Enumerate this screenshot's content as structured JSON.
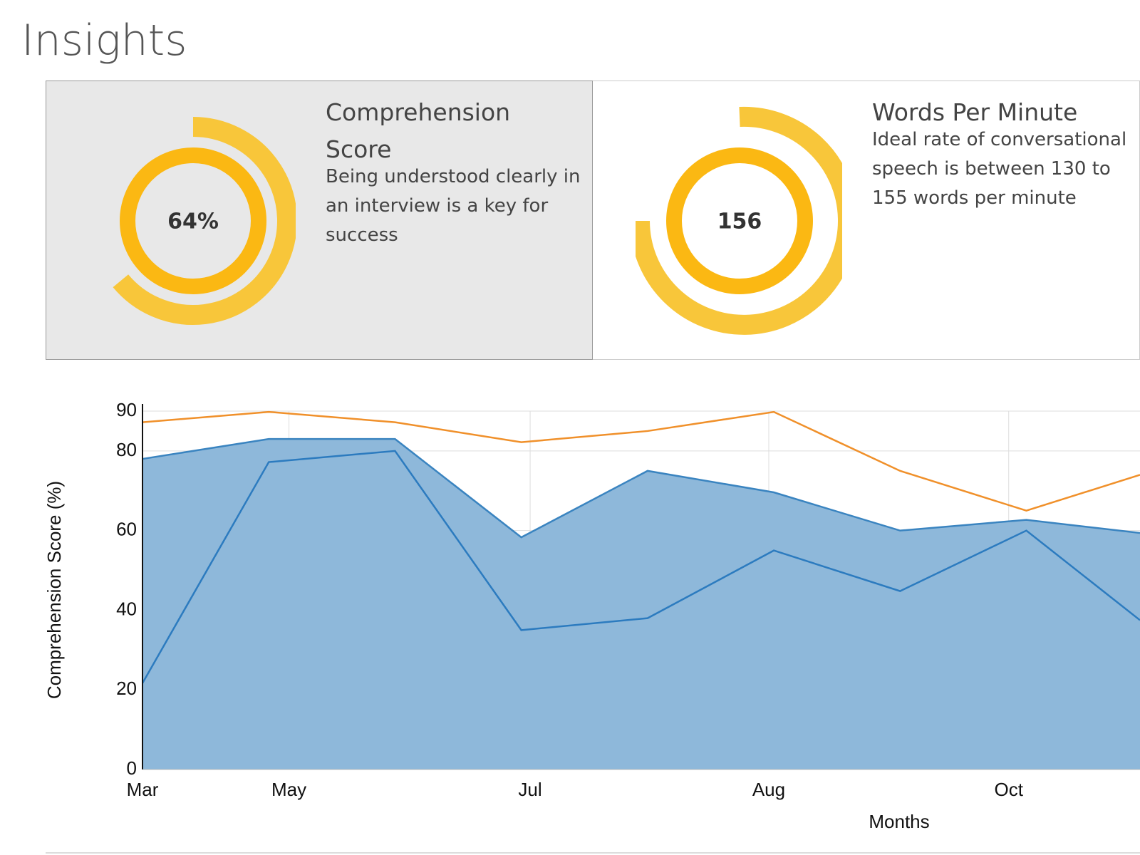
{
  "header": {
    "title": "Insights"
  },
  "cards": [
    {
      "title": "Comprehension Score",
      "description": "Being understood clearly in an interview is a key for success",
      "value": 64,
      "value_label": "64%"
    },
    {
      "title": "Words Per Minute",
      "description": "Ideal rate of conversational speech is between 130 to 155 words per minute",
      "value": 156
    }
  ],
  "chart_data": {
    "type": "line",
    "x_label": "Months",
    "y_label": "Comprehension Score (%)",
    "x": [
      0,
      1,
      2,
      3,
      4,
      5,
      6,
      7,
      7.9
    ],
    "xlim": [
      0,
      7.9
    ],
    "xticks": [
      {
        "value": 0,
        "label": "Mar"
      },
      {
        "value": 1.16,
        "label": "May"
      },
      {
        "value": 3.07,
        "label": "Jul"
      },
      {
        "value": 4.96,
        "label": "Aug"
      },
      {
        "value": 6.86,
        "label": "Oct"
      }
    ],
    "ylim": [
      0,
      90
    ],
    "yticks": [
      0,
      20,
      40,
      60,
      80,
      90
    ],
    "grid": true,
    "series": [
      {
        "type": "area",
        "color": "#3a84c0",
        "fill": "#8eb8da",
        "values": [
          78,
          83,
          83,
          58.3,
          75,
          69.6,
          60,
          62.7,
          59.4
        ]
      },
      {
        "type": "line",
        "color": "#2c7bbf",
        "values": [
          21.7,
          77.2,
          80,
          35,
          38,
          55,
          44.8,
          60,
          37.5
        ]
      },
      {
        "type": "line",
        "color": "#f0902a",
        "values": [
          87.2,
          89.8,
          87.2,
          82.2,
          85,
          89.8,
          75,
          65,
          74
        ]
      }
    ]
  }
}
